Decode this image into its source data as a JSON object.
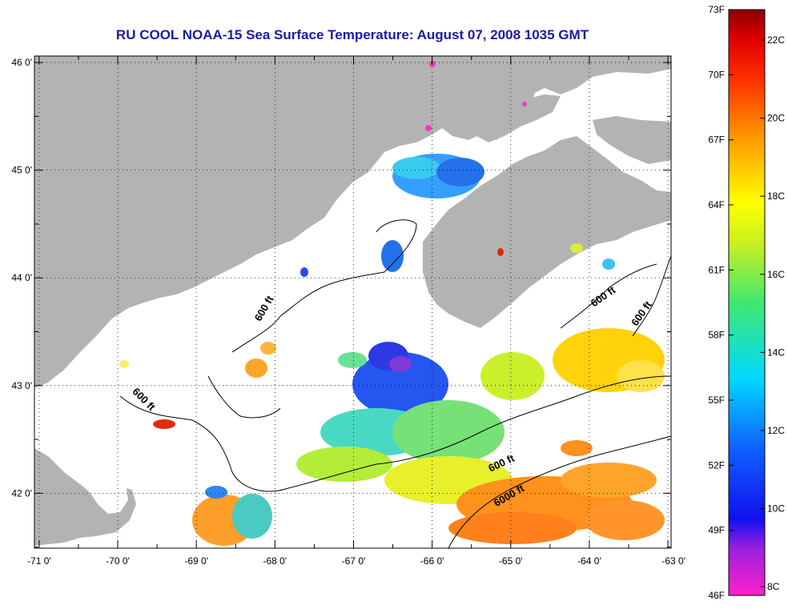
{
  "title": "RU COOL  NOAA-15  Sea Surface Temperature:  August 07, 2008 1035 GMT",
  "map": {
    "lat_ticks": [
      {
        "value": 46,
        "label": "46 0'"
      },
      {
        "value": 45,
        "label": "45 0'"
      },
      {
        "value": 44,
        "label": "44 0'"
      },
      {
        "value": 43,
        "label": "43 0'"
      },
      {
        "value": 42,
        "label": "42 0'"
      }
    ],
    "lon_ticks": [
      {
        "value": -71,
        "label": "-71 0'"
      },
      {
        "value": -70,
        "label": "-70 0'"
      },
      {
        "value": -69,
        "label": "-69 0'"
      },
      {
        "value": -68,
        "label": "-68 0'"
      },
      {
        "value": -67,
        "label": "-67 0'"
      },
      {
        "value": -66,
        "label": "-66 0'"
      },
      {
        "value": -65,
        "label": "-65 0'"
      },
      {
        "value": -64,
        "label": "-64 0'"
      },
      {
        "value": -63,
        "label": "-63 0'"
      }
    ],
    "contour_labels": [
      {
        "text": "600 ft",
        "lon": -68.1,
        "lat": 43.7,
        "rotate": -60
      },
      {
        "text": "600 ft",
        "lon": -69.7,
        "lat": 42.85,
        "rotate": 45
      },
      {
        "text": "600 ft",
        "lon": -63.8,
        "lat": 43.8,
        "rotate": -35
      },
      {
        "text": "600 ft",
        "lon": -63.3,
        "lat": 43.65,
        "rotate": -55
      },
      {
        "text": "600 ft",
        "lon": -65.1,
        "lat": 42.25,
        "rotate": -25
      },
      {
        "text": "6000 ft",
        "lon": -65.0,
        "lat": 41.95,
        "rotate": -30
      }
    ],
    "land_color": "#b3b3b3"
  },
  "colorbar": {
    "f_labels": [
      "73F",
      "70F",
      "67F",
      "64F",
      "61F",
      "58F",
      "55F",
      "52F",
      "49F",
      "46F"
    ],
    "c_labels": [
      "22C",
      "20C",
      "18C",
      "16C",
      "14C",
      "12C",
      "10C",
      "8C"
    ],
    "c_values": [
      22,
      20,
      18,
      16,
      14,
      12,
      10,
      8
    ],
    "f_values": [
      73,
      70,
      67,
      64,
      61,
      58,
      55,
      52,
      49,
      46
    ]
  }
}
